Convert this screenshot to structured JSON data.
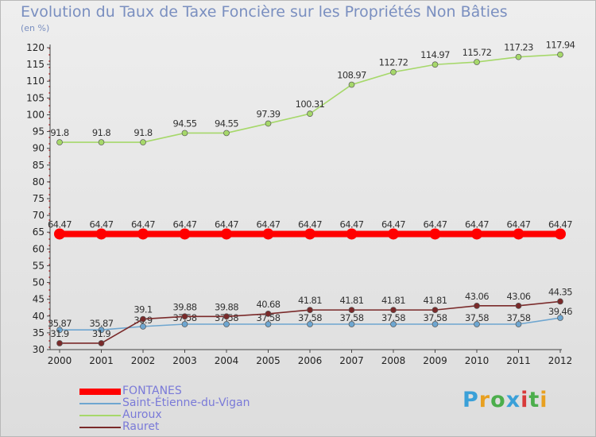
{
  "title": "Evolution du Taux de Taxe Foncière sur les Propriétés Non Bâties",
  "unit_label": "(en %)",
  "logo": {
    "text": "Proxiti",
    "letters": [
      "P",
      "r",
      "o",
      "x",
      "i",
      "t",
      "i"
    ],
    "colors": [
      "#3aa0d8",
      "#e8a020",
      "#4cae4c",
      "#3aa0d8",
      "#d83a3a",
      "#4cae4c",
      "#e8a020"
    ]
  },
  "chart_data": {
    "type": "line",
    "title": "Evolution du Taux de Taxe Foncière sur les Propriétés Non Bâties",
    "xlabel": "",
    "ylabel": "(en %)",
    "ylim": [
      30,
      120
    ],
    "y_ticks": [
      30,
      35,
      40,
      45,
      50,
      55,
      60,
      65,
      70,
      75,
      80,
      85,
      90,
      95,
      100,
      105,
      110,
      115,
      120
    ],
    "x": [
      "2000",
      "2001",
      "2002",
      "2003",
      "2004",
      "2005",
      "2006",
      "2007",
      "2008",
      "2009",
      "2010",
      "2011",
      "2012"
    ],
    "series": [
      {
        "name": "FONTANES",
        "color": "#ff0000",
        "values": [
          64.47,
          64.47,
          64.47,
          64.47,
          64.47,
          64.47,
          64.47,
          64.47,
          64.47,
          64.47,
          64.47,
          64.47,
          64.47
        ],
        "labels": [
          "64.47",
          "64.47",
          "64.47",
          "64.47",
          "64.47",
          "64.47",
          "64.47",
          "64.47",
          "64.47",
          "64.47",
          "64.47",
          "64.47",
          "64.47"
        ]
      },
      {
        "name": "Saint-Étienne-du-Vigan",
        "color": "#6ea6d0",
        "values": [
          35.87,
          35.87,
          36.9,
          37.58,
          37.58,
          37.58,
          37.58,
          37.58,
          37.58,
          37.58,
          37.58,
          37.58,
          39.46
        ],
        "labels": [
          "35.87",
          "35.87",
          "36.9",
          "37.58",
          "37.58",
          "37.58",
          "37.58",
          "37.58",
          "37.58",
          "37.58",
          "37.58",
          "37.58",
          "39.46"
        ]
      },
      {
        "name": "Auroux",
        "color": "#a6d86a",
        "values": [
          91.8,
          91.8,
          91.8,
          94.55,
          94.55,
          97.39,
          100.31,
          108.97,
          112.72,
          114.97,
          115.72,
          117.23,
          117.94
        ],
        "labels": [
          "91.8",
          "91.8",
          "91.8",
          "94.55",
          "94.55",
          "97.39",
          "100.31",
          "108.97",
          "112.72",
          "114.97",
          "115.72",
          "117.23",
          "117.94"
        ]
      },
      {
        "name": "Rauret",
        "color": "#7a2a2a",
        "values": [
          31.9,
          31.9,
          39.1,
          39.88,
          39.88,
          40.68,
          41.81,
          41.81,
          41.81,
          41.81,
          43.06,
          43.06,
          44.35
        ],
        "labels": [
          "31.9",
          "31.9",
          "39.1",
          "39.88",
          "39.88",
          "40.68",
          "41.81",
          "41.81",
          "41.81",
          "41.81",
          "43.06",
          "43.06",
          "44.35"
        ]
      }
    ],
    "legend": "bottom-left",
    "grid": false
  }
}
